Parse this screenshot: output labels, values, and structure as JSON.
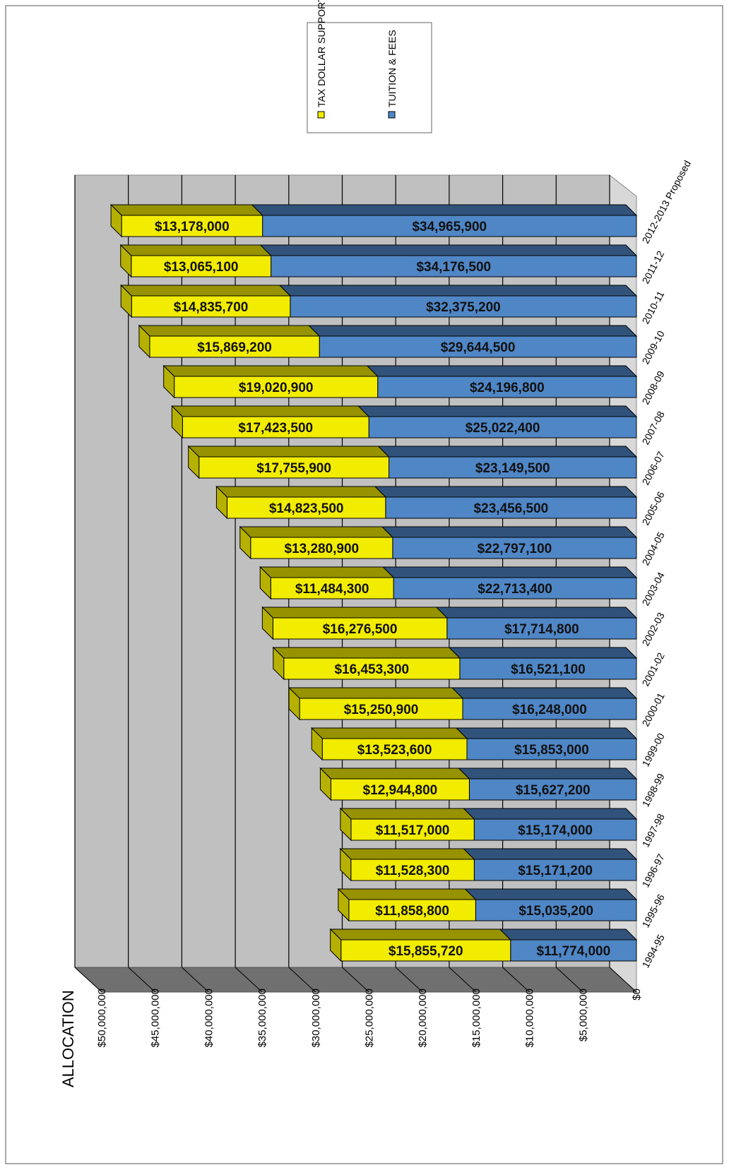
{
  "chart_data": {
    "type": "bar",
    "stacked": true,
    "three_d": true,
    "y_label": "ALLOCATION",
    "categories": [
      "1994-95",
      "1995-96",
      "1996-97",
      "1997-98",
      "1998-99",
      "1999-00",
      "2000-01",
      "2001-02",
      "2002-03",
      "2003-04",
      "2004-05",
      "2005-06",
      "2006-07",
      "2007-08",
      "2008-09",
      "2009-10",
      "2010-11",
      "2011-12",
      "2012-2013 Proposed"
    ],
    "series": [
      {
        "name": "TAX DOLLAR SUPPORT",
        "color": "#f2ec00",
        "values": [
          15855720,
          11858800,
          11528300,
          11517000,
          12944800,
          13523600,
          15250900,
          16453300,
          16276500,
          11484300,
          13280900,
          14823500,
          17755900,
          17423500,
          19020900,
          15869200,
          14835700,
          13065100,
          13178000
        ],
        "value_labels": [
          "$15,855,720",
          "$11,858,800",
          "$11,528,300",
          "$11,517,000",
          "$12,944,800",
          "$13,523,600",
          "$15,250,900",
          "$16,453,300",
          "$16,276,500",
          "$11,484,300",
          "$13,280,900",
          "$14,823,500",
          "$17,755,900",
          "$17,423,500",
          "$19,020,900",
          "$15,869,200",
          "$14,835,700",
          "$13,065,100",
          "$13,178,000"
        ]
      },
      {
        "name": "TUITION & FEES",
        "color": "#4f86c6",
        "values": [
          11774000,
          15035200,
          15171200,
          15174000,
          15627200,
          15853000,
          16248000,
          16521100,
          17714800,
          22713400,
          22797100,
          23456500,
          23149500,
          25022400,
          24196800,
          29644500,
          32375200,
          34176500,
          34965900
        ],
        "value_labels": [
          "$11,774,000",
          "$15,035,200",
          "$15,171,200",
          "$15,174,000",
          "$15,627,200",
          "$15,853,000",
          "$16,248,000",
          "$16,521,100",
          "$17,714,800",
          "$22,713,400",
          "$22,797,100",
          "$23,456,500",
          "$23,149,500",
          "$25,022,400",
          "$24,196,800",
          "$29,644,500",
          "$32,375,200",
          "$34,176,500",
          "$34,965,900"
        ]
      }
    ],
    "ylim": [
      0,
      50000000
    ],
    "yticks": [
      {
        "value": 0,
        "label": "$0"
      },
      {
        "value": 5000000,
        "label": "$5,000,000"
      },
      {
        "value": 10000000,
        "label": "$10,000,000"
      },
      {
        "value": 15000000,
        "label": "$15,000,000"
      },
      {
        "value": 20000000,
        "label": "$20,000,000"
      },
      {
        "value": 25000000,
        "label": "$25,000,000"
      },
      {
        "value": 30000000,
        "label": "$30,000,000"
      },
      {
        "value": 35000000,
        "label": "$35,000,000"
      },
      {
        "value": 40000000,
        "label": "$40,000,000"
      },
      {
        "value": 45000000,
        "label": "$45,000,000"
      },
      {
        "value": 50000000,
        "label": "$50,000,000"
      }
    ],
    "grid": true
  }
}
